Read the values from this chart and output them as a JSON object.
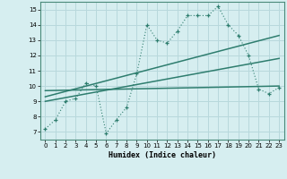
{
  "xlabel": "Humidex (Indice chaleur)",
  "bg_color": "#d6eef0",
  "grid_color": "#b8d8dc",
  "line_color": "#2e7d6e",
  "xlim": [
    -0.5,
    23.5
  ],
  "ylim": [
    6.5,
    15.5
  ],
  "xticks": [
    0,
    1,
    2,
    3,
    4,
    5,
    6,
    7,
    8,
    9,
    10,
    11,
    12,
    13,
    14,
    15,
    16,
    17,
    18,
    19,
    20,
    21,
    22,
    23
  ],
  "yticks": [
    7,
    8,
    9,
    10,
    11,
    12,
    13,
    14,
    15
  ],
  "series1_x": [
    0,
    1,
    2,
    3,
    4,
    5,
    6,
    7,
    8,
    9,
    10,
    11,
    12,
    13,
    14,
    15,
    16,
    17,
    18,
    19,
    20,
    21,
    22,
    23
  ],
  "series1_y": [
    7.2,
    7.8,
    9.0,
    9.2,
    10.2,
    10.0,
    6.9,
    7.8,
    8.6,
    10.8,
    14.0,
    13.0,
    12.8,
    13.6,
    14.6,
    14.6,
    14.6,
    15.2,
    14.0,
    13.3,
    12.0,
    9.8,
    9.5,
    9.9
  ],
  "series2_x": [
    0,
    23
  ],
  "series2_y": [
    9.3,
    13.3
  ],
  "series3_x": [
    0,
    23
  ],
  "series3_y": [
    9.0,
    11.8
  ],
  "series4_x": [
    0,
    23
  ],
  "series4_y": [
    9.7,
    10.0
  ]
}
